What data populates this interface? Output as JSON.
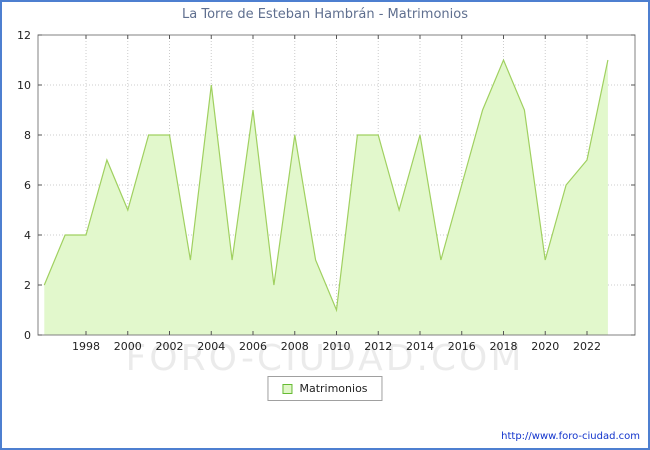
{
  "window": {
    "border_color": "#4d7fd0"
  },
  "header": {
    "title": "La Torre de Esteban Hambrán - Matrimonios",
    "title_color": "#5f6f8f"
  },
  "legend": {
    "label": "Matrimonios",
    "swatch_fill": "#e0f6c8",
    "swatch_border": "#66bb33"
  },
  "watermark": {
    "text": "FORO-CIUDAD.COM"
  },
  "footer": {
    "url": "http://www.foro-ciudad.com"
  },
  "chart_data": {
    "type": "area",
    "title": "La Torre de Esteban Hambrán - Matrimonios",
    "series_name": "Matrimonios",
    "x": [
      1996,
      1997,
      1998,
      1999,
      2000,
      2001,
      2002,
      2003,
      2004,
      2005,
      2006,
      2007,
      2008,
      2009,
      2010,
      2011,
      2012,
      2013,
      2014,
      2015,
      2016,
      2017,
      2018,
      2019,
      2020,
      2021,
      2022,
      2023
    ],
    "values": [
      2,
      4,
      4,
      7,
      5,
      8,
      8,
      3,
      10,
      3,
      9,
      2,
      8,
      3,
      1,
      8,
      8,
      5,
      8,
      3,
      6,
      9,
      11,
      9,
      3,
      6,
      7,
      11
    ],
    "xlim": [
      1995.7,
      2024.3
    ],
    "ylim": [
      0,
      12
    ],
    "x_ticks": [
      1998,
      2000,
      2002,
      2004,
      2006,
      2008,
      2010,
      2012,
      2014,
      2016,
      2018,
      2020,
      2022
    ],
    "y_ticks": [
      0,
      2,
      4,
      6,
      8,
      10,
      12
    ],
    "grid": true,
    "grid_color": "#cccccc",
    "legend_position": "bottom-center",
    "line_color": "#a0d060",
    "fill_color": "#e2f8cc",
    "plot_border_color": "#808080",
    "tick_label_color": "#222222"
  }
}
